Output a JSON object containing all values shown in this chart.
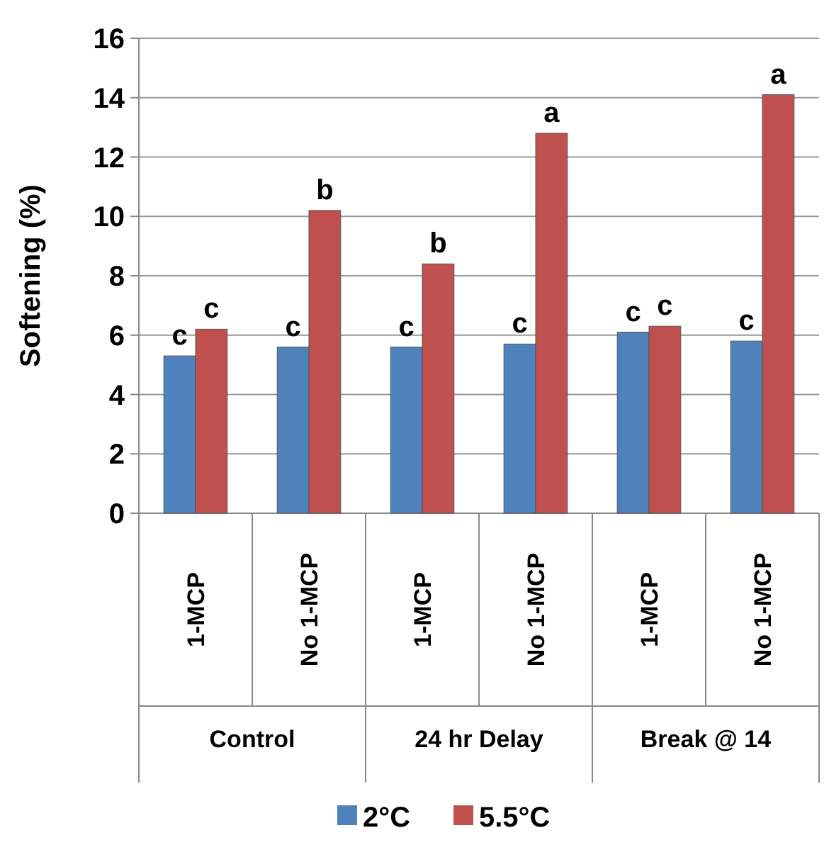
{
  "chart_data": {
    "type": "bar",
    "ylabel": "Softening (%)",
    "categories": [
      "1-MCP",
      "No 1-MCP",
      "1-MCP",
      "No 1-MCP",
      "1-MCP",
      "No 1-MCP"
    ],
    "series": [
      {
        "name": "2°C",
        "color": "#4f81bd",
        "values": [
          5.3,
          5.6,
          5.6,
          5.7,
          6.1,
          5.8
        ],
        "value_labels": [
          "c",
          "c",
          "c",
          "c",
          "c",
          "c"
        ]
      },
      {
        "name": "5.5°C",
        "color": "#c0504d",
        "values": [
          6.2,
          10.2,
          8.4,
          12.8,
          6.3,
          14.1
        ],
        "value_labels": [
          "c",
          "b",
          "b",
          "a",
          "c",
          "a"
        ]
      }
    ],
    "ylim": [
      0,
      16
    ],
    "yticks": [
      0,
      2,
      4,
      6,
      8,
      10,
      12,
      14,
      16
    ],
    "grid": "y",
    "legend": "bottom",
    "annotations": [
      "Control",
      "24 hr Delay",
      "Break @ 14"
    ]
  }
}
